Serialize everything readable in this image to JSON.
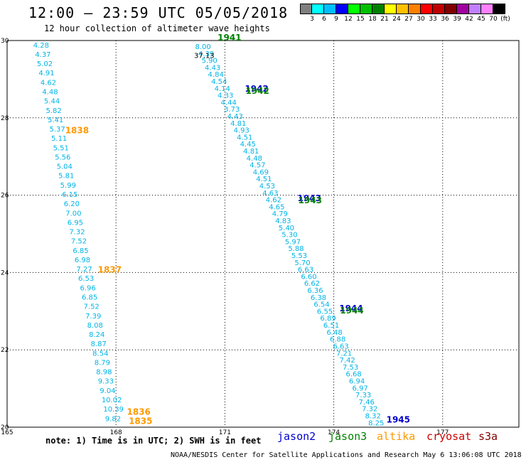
{
  "header": {
    "title": "12:00 — 23:59 UTC 05/05/2018",
    "subtitle": "12 hour collection of altimeter wave heights"
  },
  "color_scale": {
    "colors": [
      "#7f7f7f",
      "#00ffff",
      "#00bfff",
      "#0000ff",
      "#00ff00",
      "#00c000",
      "#008000",
      "#ffff00",
      "#ffc000",
      "#ff8000",
      "#ff0000",
      "#c00000",
      "#800000",
      "#a000a0",
      "#c080ff",
      "#ff80ff",
      "#000000"
    ],
    "labels": [
      "3",
      "6",
      "9",
      "12",
      "15",
      "18",
      "21",
      "24",
      "27",
      "30",
      "33",
      "36",
      "39",
      "42",
      "45",
      "70",
      "(ft)"
    ]
  },
  "map": {
    "lon_ticks": [
      "165",
      "168",
      "171",
      "174",
      "177"
    ],
    "lat_ticks": [
      "30",
      "28",
      "26",
      "24",
      "22",
      "20"
    ]
  },
  "tracks": [
    {
      "name": "altika-descending",
      "color": "#00b4e6",
      "lat_start": 29.82,
      "lat_end": 20.16,
      "lon_start": 165.72,
      "lon_end": 167.7,
      "values": [
        "4.28",
        "4.37",
        "5.02",
        "4.91",
        "4.62",
        "4.48",
        "5.44",
        "5.82",
        "5.41",
        "5.37",
        "5.11",
        "5.51",
        "5.56",
        "5.04",
        "5.81",
        "5.99",
        "6.15",
        "6.20",
        "7.00",
        "6.95",
        "7.32",
        "7.52",
        "6.85",
        "6.98",
        "7.27",
        "6.53",
        "6.96",
        "6.85",
        "7.52",
        "7.39",
        "8.08",
        "8.24",
        "8.87",
        "8.54",
        "8.79",
        "8.98",
        "9.33",
        "9.04",
        "10.02",
        "10.39",
        "9.82"
      ]
    },
    {
      "name": "jason-ascending",
      "color": "#00b4e6",
      "lat_start": 29.78,
      "lat_end": 20.05,
      "lon_start": 170.18,
      "lon_end": 174.95,
      "values": [
        "8.00",
        "4.39",
        "5.90",
        "4.43",
        "4.84",
        "4.54",
        "4.14",
        "4.33",
        "4.44",
        "3.73",
        "4.43",
        "4.81",
        "4.93",
        "4.51",
        "4.45",
        "4.81",
        "4.48",
        "4.57",
        "4.69",
        "4.51",
        "4.53",
        "4.63",
        "4.62",
        "4.65",
        "4.79",
        "4.83",
        "5.40",
        "5.30",
        "5.97",
        "5.88",
        "5.53",
        "5.70",
        "6.63",
        "6.60",
        "6.62",
        "6.36",
        "6.38",
        "6.54",
        "6.55",
        "6.89",
        "6.51",
        "6.48",
        "6.88",
        "6.63",
        "7.21",
        "7.42",
        "7.53",
        "6.68",
        "6.94",
        "6.97",
        "7.33",
        "7.46",
        "7.32",
        "8.32",
        "8.25"
      ]
    }
  ],
  "outlier_label": {
    "text": "37.13"
  },
  "time_labels": [
    {
      "text": "1838",
      "lat": 27.6,
      "lon": 166.6,
      "color": "#ff9900"
    },
    {
      "text": "1837",
      "lat": 24.0,
      "lon": 167.5,
      "color": "#ff9900"
    },
    {
      "text": "1836",
      "lat": 20.32,
      "lon": 168.3,
      "color": "#ff9900"
    },
    {
      "text": "1835",
      "lat": 20.08,
      "lon": 168.35,
      "color": "#ff9900"
    },
    {
      "text": "1941",
      "lat": 30.0,
      "lon": 170.8,
      "color": "#008000"
    },
    {
      "text": "1942",
      "lat": 28.68,
      "lon": 171.55,
      "color": "#0000cc"
    },
    {
      "text": "1942",
      "lat": 28.62,
      "lon": 171.57,
      "color": "#008000"
    },
    {
      "text": "1943",
      "lat": 25.85,
      "lon": 173.0,
      "color": "#0000cc"
    },
    {
      "text": "1943",
      "lat": 25.79,
      "lon": 173.02,
      "color": "#008000"
    },
    {
      "text": "1944",
      "lat": 23.0,
      "lon": 174.15,
      "color": "#0000cc"
    },
    {
      "text": "1944",
      "lat": 22.94,
      "lon": 174.17,
      "color": "#008000"
    },
    {
      "text": "1945",
      "lat": 20.12,
      "lon": 175.45,
      "color": "#0000cc"
    }
  ],
  "footer": {
    "note": "note: 1) Time is in UTC; 2) SWH is in feet",
    "legend": [
      {
        "text": "jason2",
        "color": "#0000cc"
      },
      {
        "text": "jason3",
        "color": "#008000"
      },
      {
        "text": "altika",
        "color": "#ff9900"
      },
      {
        "text": "cryosat",
        "color": "#cc0000"
      },
      {
        "text": "s3a",
        "color": "#800000"
      }
    ],
    "credit": "NOAA/NESDIS Center for Satellite Applications and Research   May  6 13:06:08 UTC 2018"
  }
}
